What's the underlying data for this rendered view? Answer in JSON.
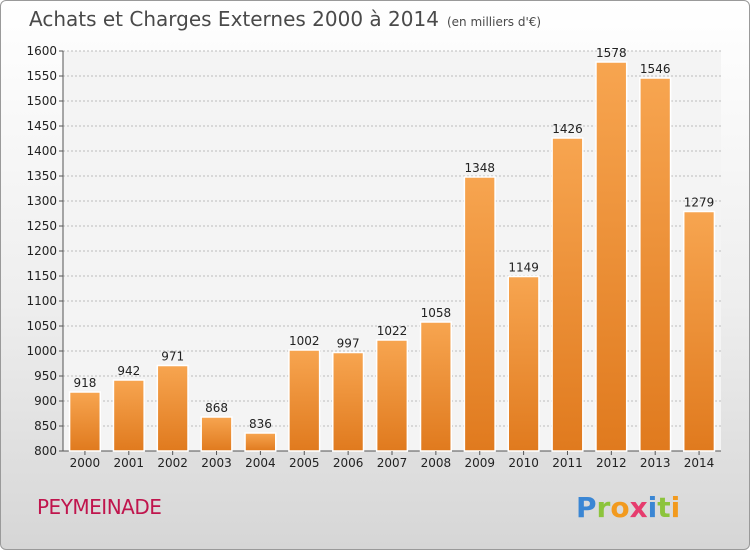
{
  "header": {
    "title": "Achats et Charges Externes 2000 à 2014",
    "unit": "(en milliers d'€)"
  },
  "footer": {
    "commune": "PEYMEINADE",
    "logo_letters": [
      "P",
      "r",
      "o",
      "x",
      "i",
      "t",
      "i"
    ],
    "logo_colors": [
      "#3a86d4",
      "#8cc43c",
      "#f29a1e",
      "#e63c6e",
      "#3a86d4",
      "#8cc43c",
      "#f29a1e"
    ]
  },
  "colors": {
    "bar_light": "#f7a550",
    "bar_dark": "#e07a1e",
    "grid": "#bbbbbb"
  },
  "chart_data": {
    "type": "bar",
    "title": "Achats et Charges Externes 2000 à 2014",
    "subtitle": "(en milliers d'€)",
    "categories": [
      "2000",
      "2001",
      "2002",
      "2003",
      "2004",
      "2005",
      "2006",
      "2007",
      "2008",
      "2009",
      "2010",
      "2011",
      "2012",
      "2013",
      "2014"
    ],
    "values": [
      918,
      942,
      971,
      868,
      836,
      1002,
      997,
      1022,
      1058,
      1348,
      1149,
      1426,
      1578,
      1546,
      1279
    ],
    "ylim": [
      800,
      1600
    ],
    "yticks": [
      800,
      850,
      900,
      950,
      1000,
      1050,
      1100,
      1150,
      1200,
      1250,
      1300,
      1350,
      1400,
      1450,
      1500,
      1550,
      1600
    ],
    "grid": true,
    "legend": "none"
  }
}
